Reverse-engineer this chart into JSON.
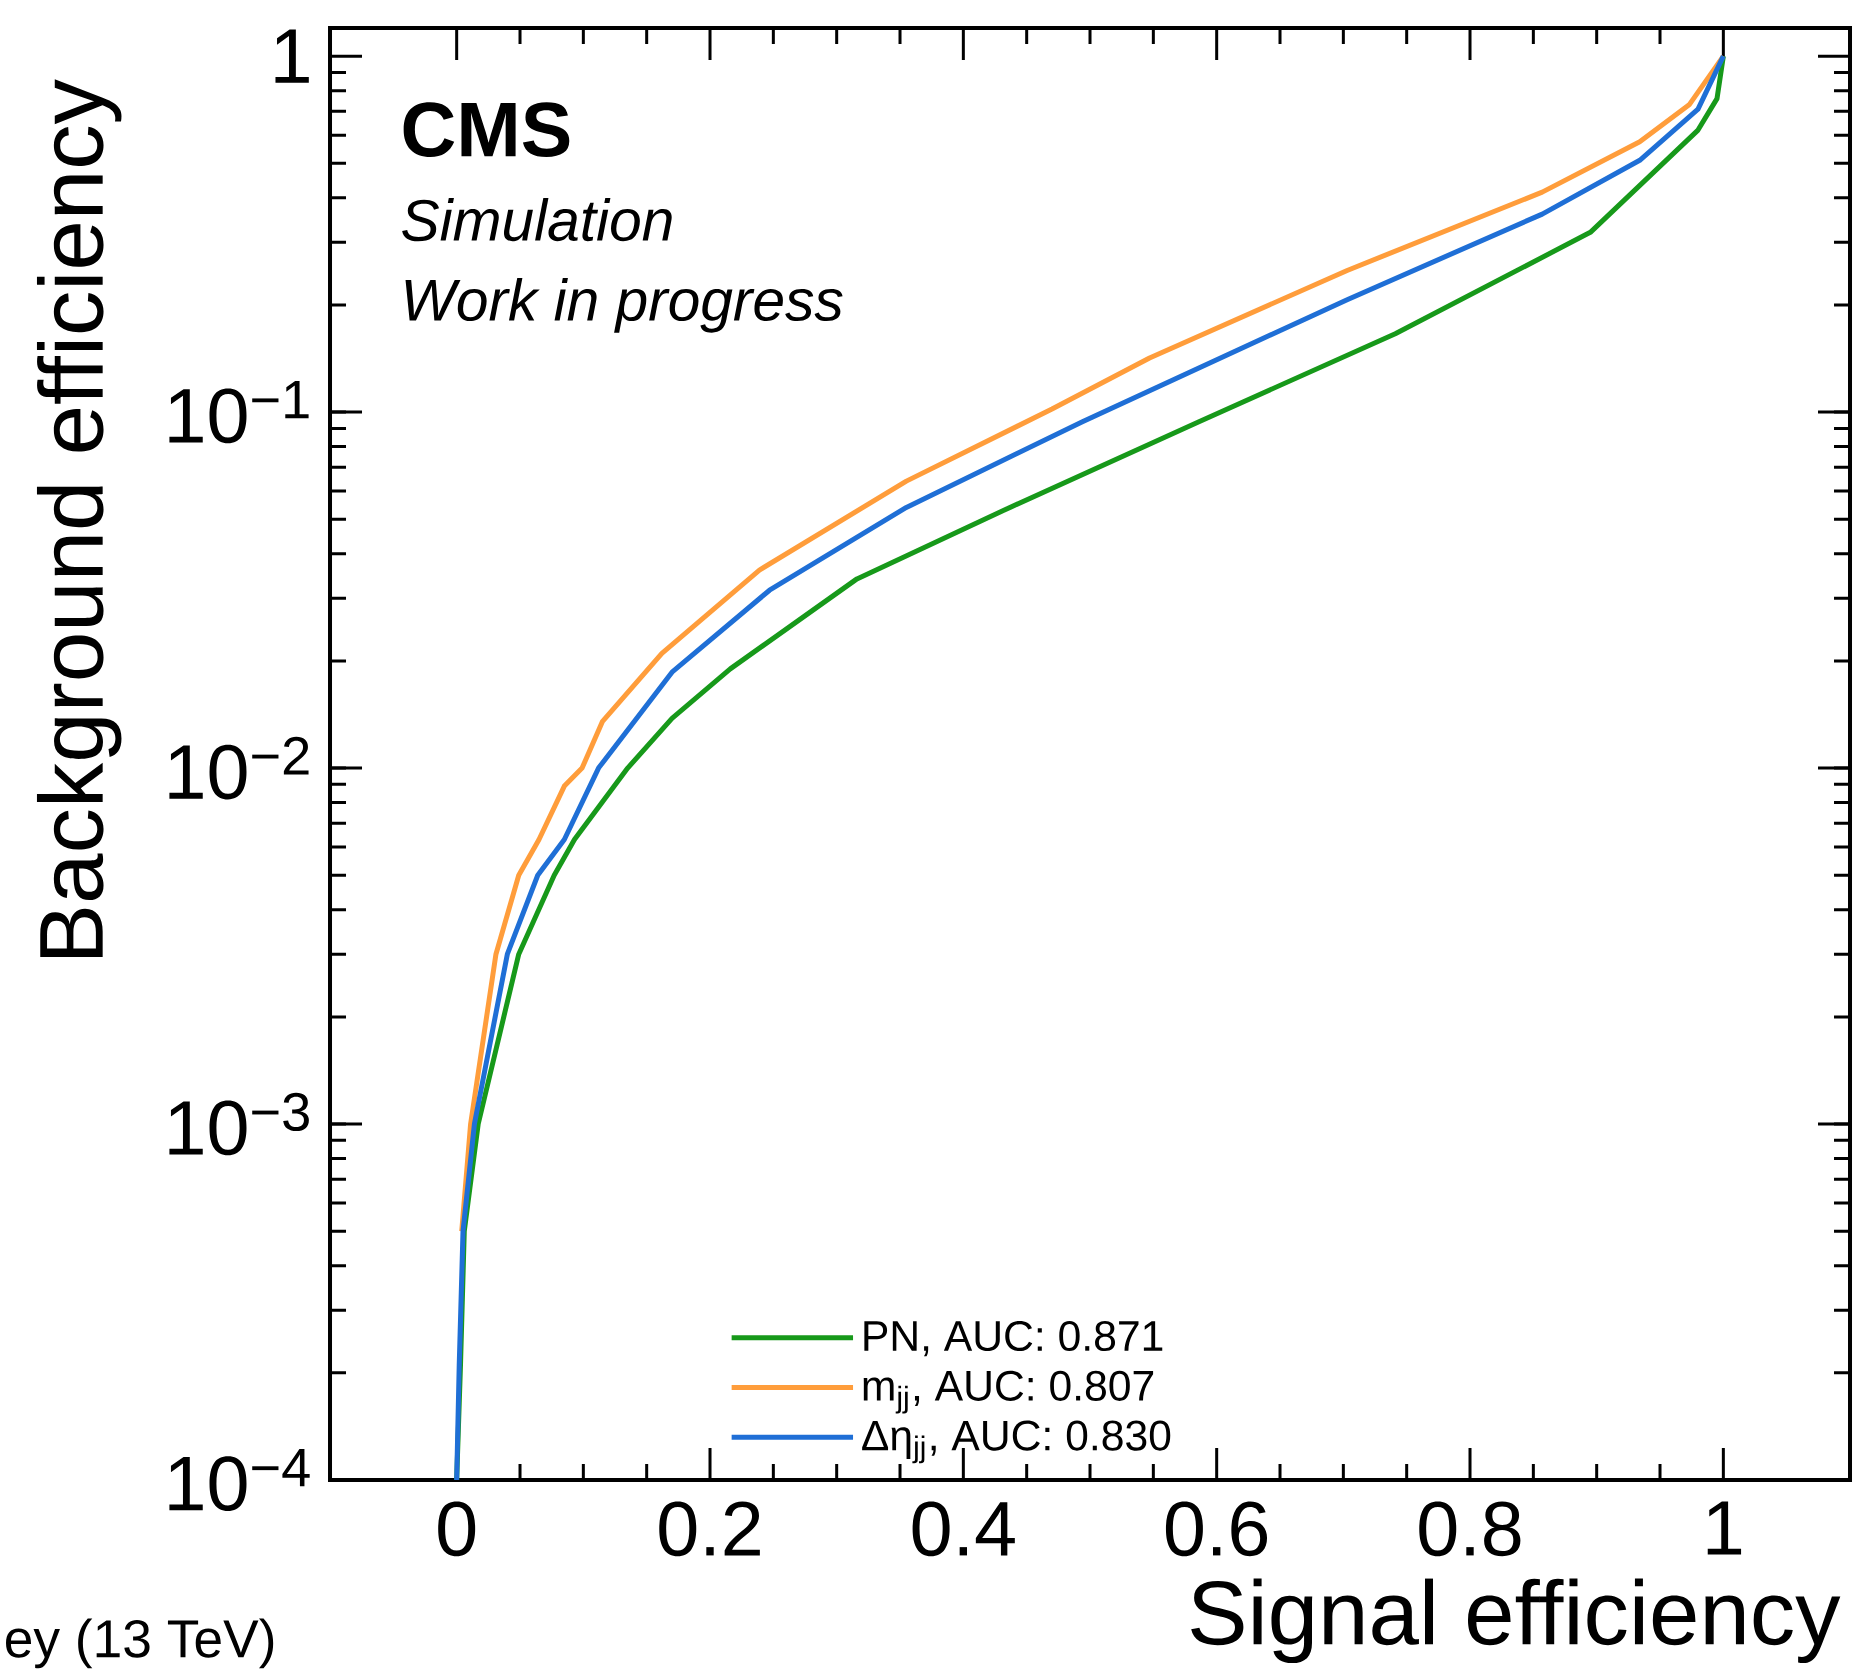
{
  "chart_data": {
    "type": "line",
    "xlabel": "Signal efficiency",
    "ylabel": "Background efficiency",
    "annotations": [
      "CMS",
      "Simulation",
      "Work in progress",
      "ey (13 TeV)"
    ],
    "log": "y",
    "xlim": [
      -0.1,
      1.1
    ],
    "ylim": [
      0.0001,
      1.2
    ],
    "xticks": [
      0,
      0.2,
      0.4,
      0.6,
      0.8,
      1
    ],
    "yticks": [
      {
        "value": 0.0001,
        "label": "10$^{−4}$"
      },
      {
        "value": 0.001,
        "label": "10$^{−3}$"
      },
      {
        "value": 0.01,
        "label": "10$^{−2}$"
      },
      {
        "value": 0.1,
        "label": "10$^{−1}$"
      },
      1
    ],
    "legend": "bottom",
    "marker": "none",
    "line_style": "solid",
    "series": [
      {
        "name": "PN, AUC: 0.871",
        "color": "#17991a",
        "x": [
          0,
          0.003,
          0.006,
          0.017,
          0.049,
          0.077,
          0.093,
          0.135,
          0.17,
          0.216,
          0.316,
          0.432,
          0.586,
          0.741,
          0.895,
          0.98,
          0.995,
          1.0
        ],
        "values": [
          0.0001,
          0.00021,
          0.0005,
          0.001,
          0.003,
          0.005,
          0.0063,
          0.01,
          0.0138,
          0.019,
          0.034,
          0.053,
          0.094,
          0.166,
          0.32,
          0.62,
          0.76,
          1
        ]
      },
      {
        "name": "m$_{jj}$, AUC: 0.807",
        "color": "#ff9d3b",
        "x": [
          0.004,
          0.011,
          0.031,
          0.049,
          0.065,
          0.085,
          0.099,
          0.115,
          0.162,
          0.239,
          0.355,
          0.47,
          0.547,
          0.703,
          0.857,
          0.934,
          0.973,
          1.0
        ],
        "values": [
          0.0005,
          0.001,
          0.003,
          0.005,
          0.0063,
          0.0089,
          0.01,
          0.0135,
          0.021,
          0.036,
          0.064,
          0.102,
          0.142,
          0.25,
          0.415,
          0.575,
          0.73,
          1
        ]
      },
      {
        "name": "Δη$_{jj}$, AUC: 0.830",
        "color": "#1f6fd6",
        "x": [
          0,
          0.002,
          0.005,
          0.014,
          0.04,
          0.064,
          0.085,
          0.112,
          0.17,
          0.247,
          0.355,
          0.494,
          0.703,
          0.857,
          0.934,
          0.98,
          1.0
        ],
        "values": [
          0.0001,
          0.00021,
          0.0005,
          0.001,
          0.003,
          0.005,
          0.0063,
          0.01,
          0.0186,
          0.0316,
          0.054,
          0.094,
          0.207,
          0.36,
          0.51,
          0.71,
          1
        ]
      }
    ]
  }
}
